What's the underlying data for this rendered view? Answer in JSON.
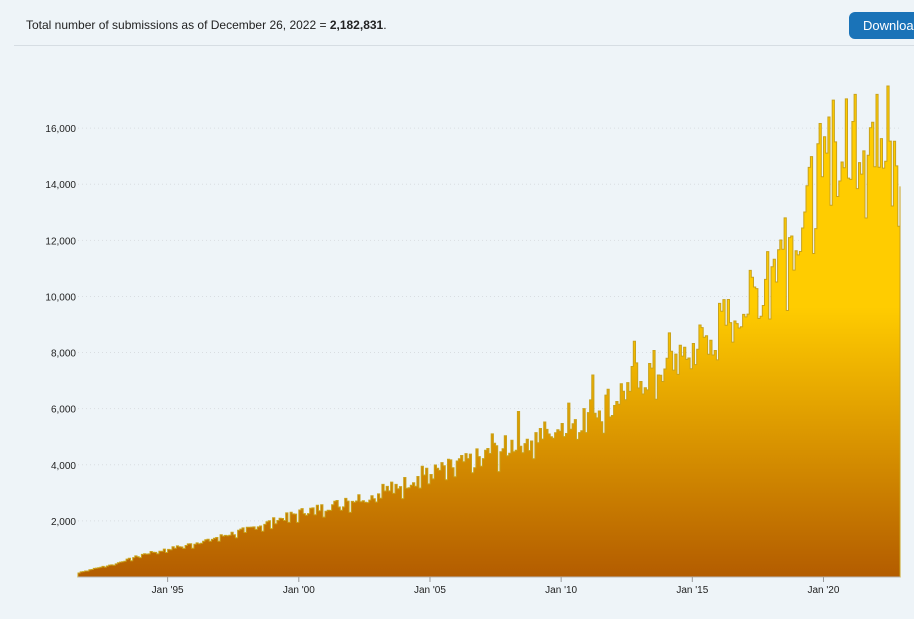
{
  "header": {
    "summary_prefix": "Total number of submissions as of December 26, 2022 = ",
    "summary_total": "2,182,831",
    "summary_suffix": ".",
    "download_label": "Download"
  },
  "colors": {
    "bar_top": "#ffcc00",
    "bar_bottom": "#b35c00",
    "bar_stroke": "#c9a21a",
    "grid": "#d9dde1",
    "background": "#eef4f8",
    "accent": "#1a73b8"
  },
  "chart_data": {
    "type": "area",
    "title": "",
    "xlabel": "",
    "ylabel": "",
    "grid": "horizontal dotted",
    "x_range": [
      "1991-08",
      "2022-12"
    ],
    "ylim": [
      0,
      18000
    ],
    "y_ticks": [
      2000,
      4000,
      6000,
      8000,
      10000,
      12000,
      14000,
      16000
    ],
    "y_tick_labels": [
      "2,000",
      "4,000",
      "6,000",
      "8,000",
      "10,000",
      "12,000",
      "14,000",
      "16,000"
    ],
    "x_ticks": [
      "1995-01",
      "2000-01",
      "2005-01",
      "2010-01",
      "2015-01",
      "2020-01"
    ],
    "x_tick_labels": [
      "Jan '95",
      "Jan '00",
      "Jan '05",
      "Jan '10",
      "Jan '15",
      "Jan '20"
    ],
    "series": [
      {
        "values_by_year_start": {
          "1991": 20,
          "1992": 260,
          "1993": 480,
          "1994": 800,
          "1995": 1000,
          "1996": 1200,
          "1997": 1450,
          "1998": 1700,
          "1999": 2000,
          "2000": 2300,
          "2001": 2500,
          "2002": 2750,
          "2003": 3000,
          "2004": 3350,
          "2005": 3700,
          "2006": 4000,
          "2007": 4300,
          "2008": 4700,
          "2009": 5000,
          "2010": 5400,
          "2011": 5800,
          "2012": 6400,
          "2013": 7100,
          "2014": 7600,
          "2015": 8200,
          "2016": 8900,
          "2017": 9600,
          "2018": 11000,
          "2019": 12700,
          "2020": 14800,
          "2021": 15500,
          "2022": 16200
        },
        "peaks": [
          {
            "x": "2001-10",
            "y": 2800
          },
          {
            "x": "2003-03",
            "y": 3300
          },
          {
            "x": "2004-09",
            "y": 3950
          },
          {
            "x": "2006-05",
            "y": 4400
          },
          {
            "x": "2007-05",
            "y": 5100
          },
          {
            "x": "2008-05",
            "y": 5900
          },
          {
            "x": "2010-04",
            "y": 6200
          },
          {
            "x": "2011-03",
            "y": 7200
          },
          {
            "x": "2012-10",
            "y": 8400
          },
          {
            "x": "2014-02",
            "y": 8700
          },
          {
            "x": "2016-12",
            "y": 10400
          },
          {
            "x": "2017-11",
            "y": 11600
          },
          {
            "x": "2018-07",
            "y": 12800
          },
          {
            "x": "2019-06",
            "y": 14600
          },
          {
            "x": "2020-05",
            "y": 17000
          },
          {
            "x": "2021-03",
            "y": 17200
          },
          {
            "x": "2022-01",
            "y": 17200
          },
          {
            "x": "2022-06",
            "y": 17500
          },
          {
            "x": "2022-11",
            "y": 12500
          }
        ]
      }
    ]
  }
}
